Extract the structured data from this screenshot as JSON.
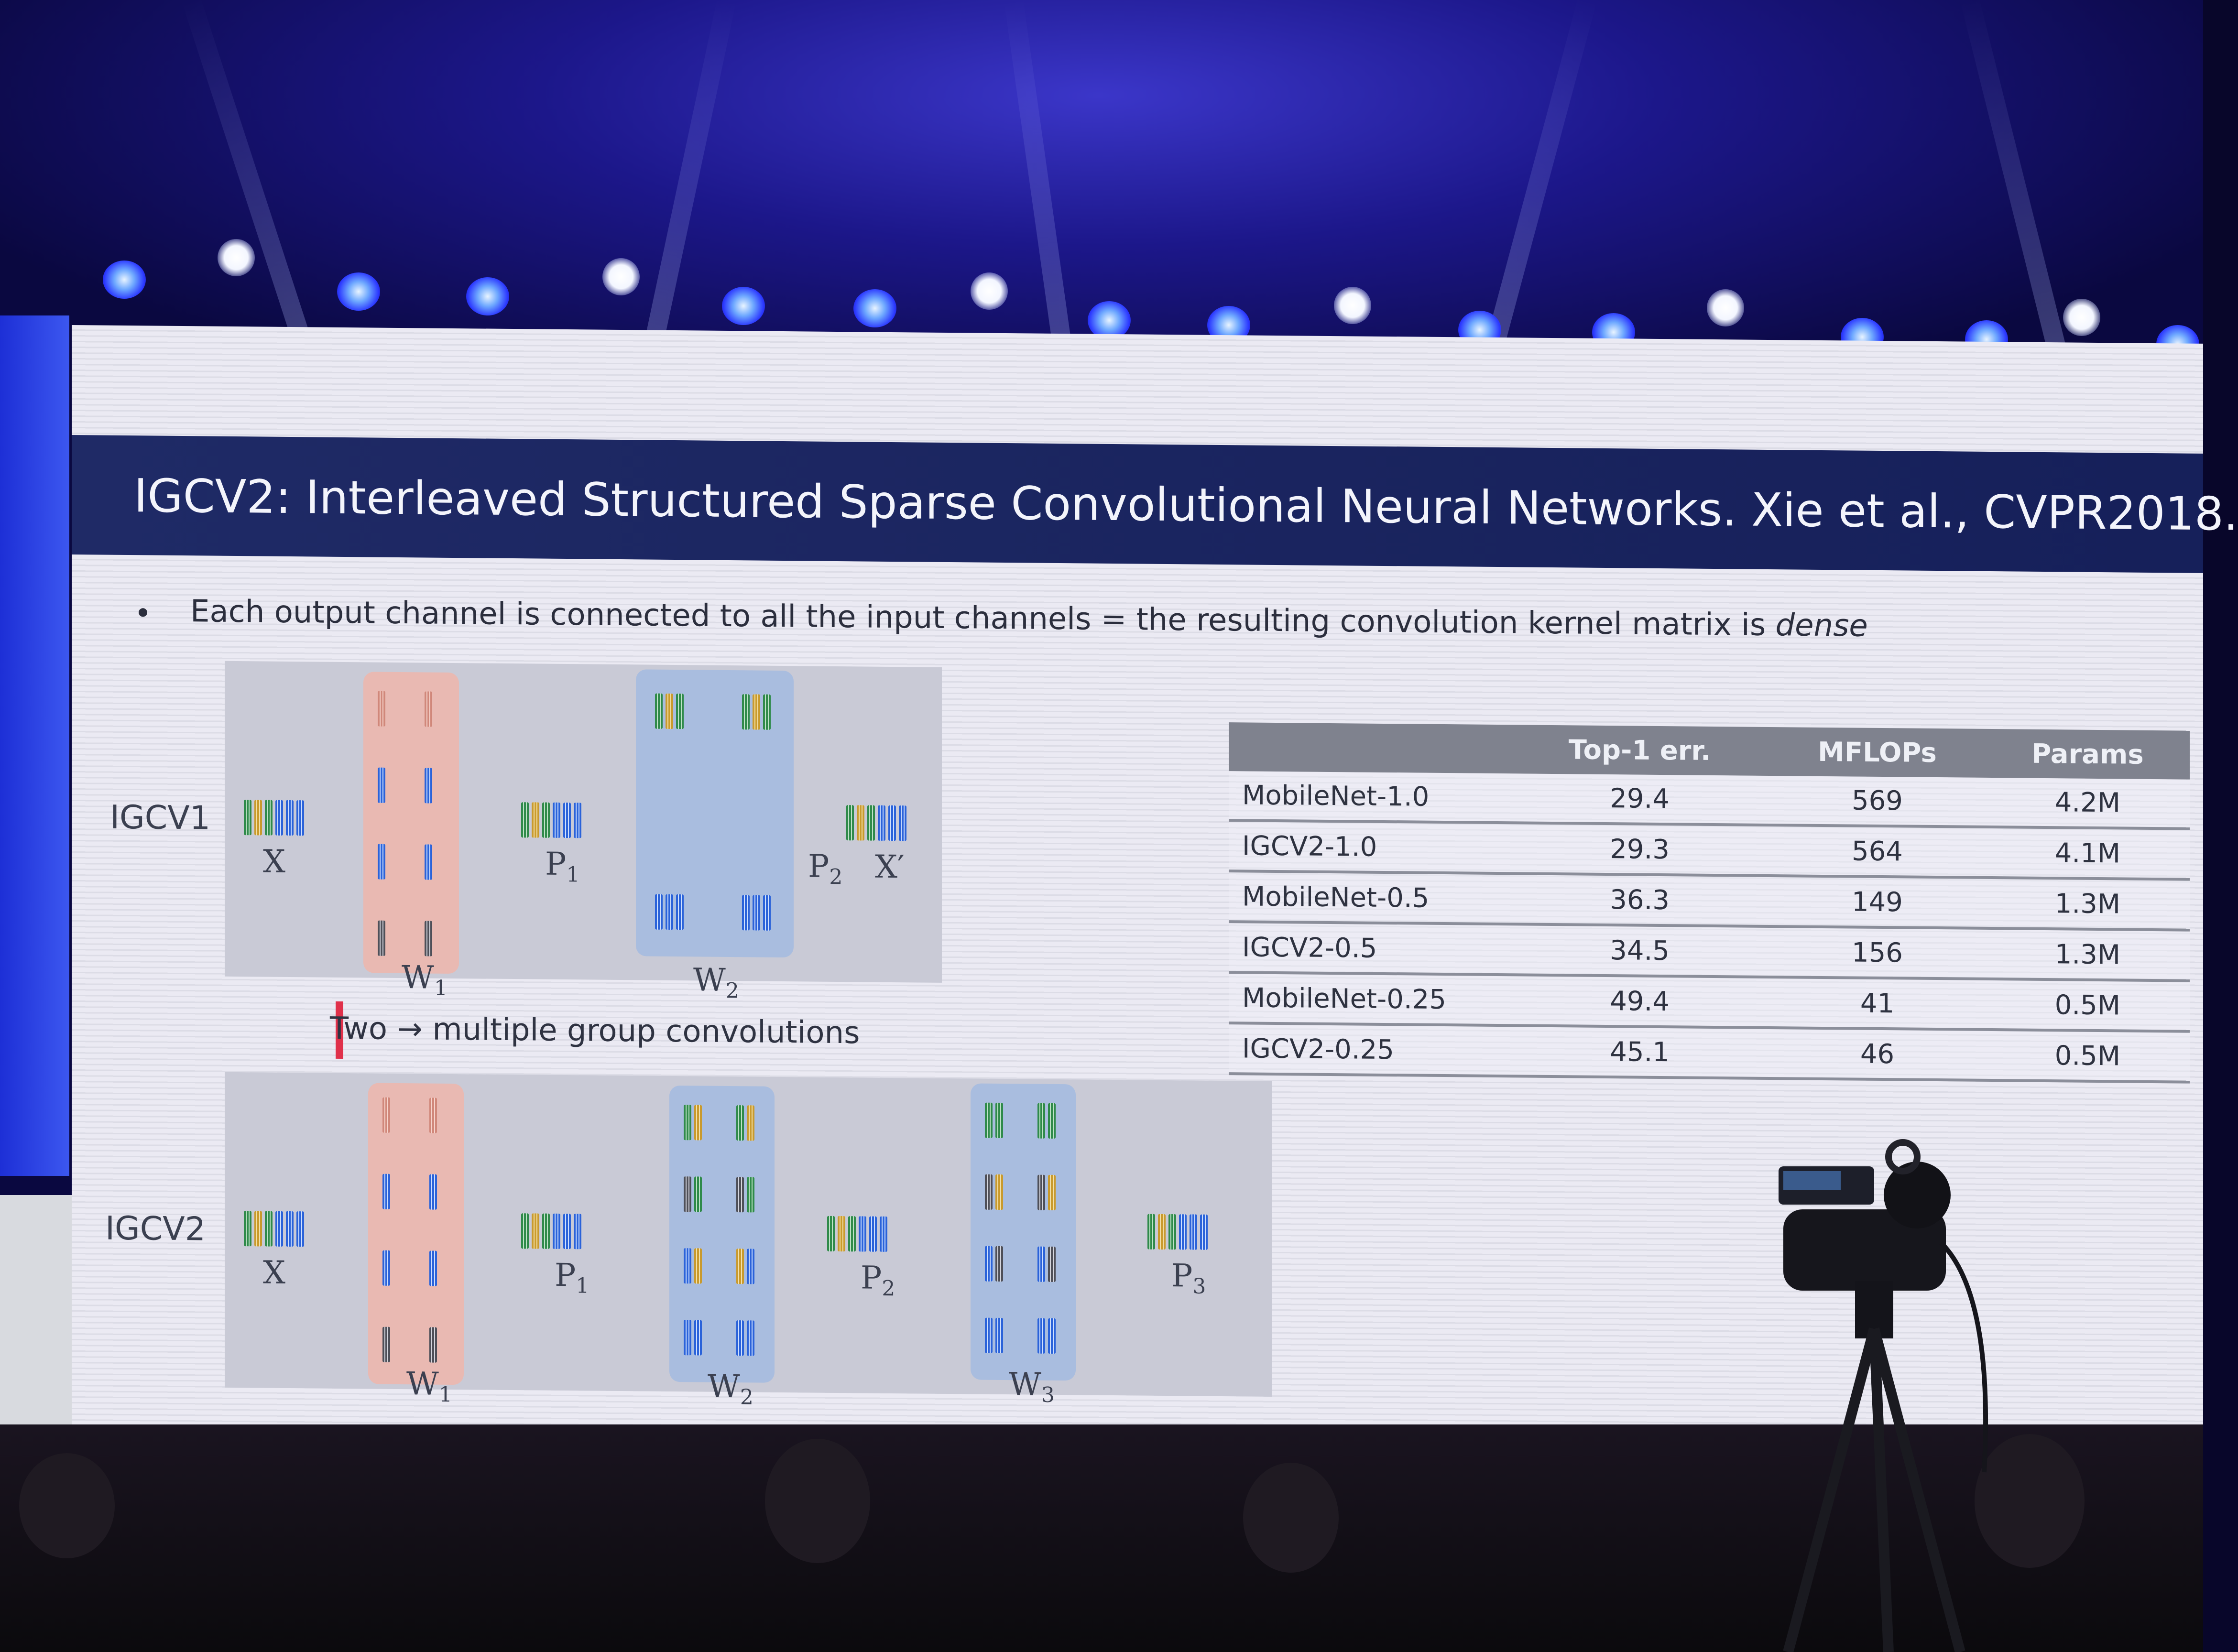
{
  "slide": {
    "title": "IGCV2: Interleaved Structured Sparse Convolutional Neural Networks. Xie et al., CVPR2018.",
    "bullet": "Each output channel is connected to all the input channels = the resulting convolution kernel matrix is",
    "bullet_emph": "dense",
    "transition_label": "Two → multiple group convolutions"
  },
  "igcv1": {
    "label": "IGCV1",
    "x": "X",
    "w1": "W",
    "w1_sub": "1",
    "p1": "P",
    "p1_sub": "1",
    "w2": "W",
    "w2_sub": "2",
    "p2": "P",
    "p2_sub": "2",
    "x_out": "X′"
  },
  "igcv2": {
    "label": "IGCV2",
    "x": "X",
    "w1": "W",
    "w1_sub": "1",
    "p1": "P",
    "p1_sub": "1",
    "w2": "W",
    "w2_sub": "2",
    "p2": "P",
    "p2_sub": "2",
    "w3": "W",
    "w3_sub": "3",
    "p3": "P",
    "p3_sub": "3"
  },
  "table": {
    "headers": [
      "",
      "Top-1 err.",
      "MFLOPs",
      "Params"
    ],
    "rows": [
      [
        "MobileNet-1.0",
        "29.4",
        "569",
        "4.2M"
      ],
      [
        "IGCV2-1.0",
        "29.3",
        "564",
        "4.1M"
      ],
      [
        "MobileNet-0.5",
        "36.3",
        "149",
        "1.3M"
      ],
      [
        "IGCV2-0.5",
        "34.5",
        "156",
        "1.3M"
      ],
      [
        "MobileNet-0.25",
        "49.4",
        "41",
        "0.5M"
      ],
      [
        "IGCV2-0.25",
        "45.1",
        "46",
        "0.5M"
      ]
    ]
  },
  "colors": {
    "title_bar": "#1f2a66",
    "group_red": "#e9b9b2",
    "group_blue": "#a9bddf",
    "stage_blue": "#2a36ff"
  }
}
